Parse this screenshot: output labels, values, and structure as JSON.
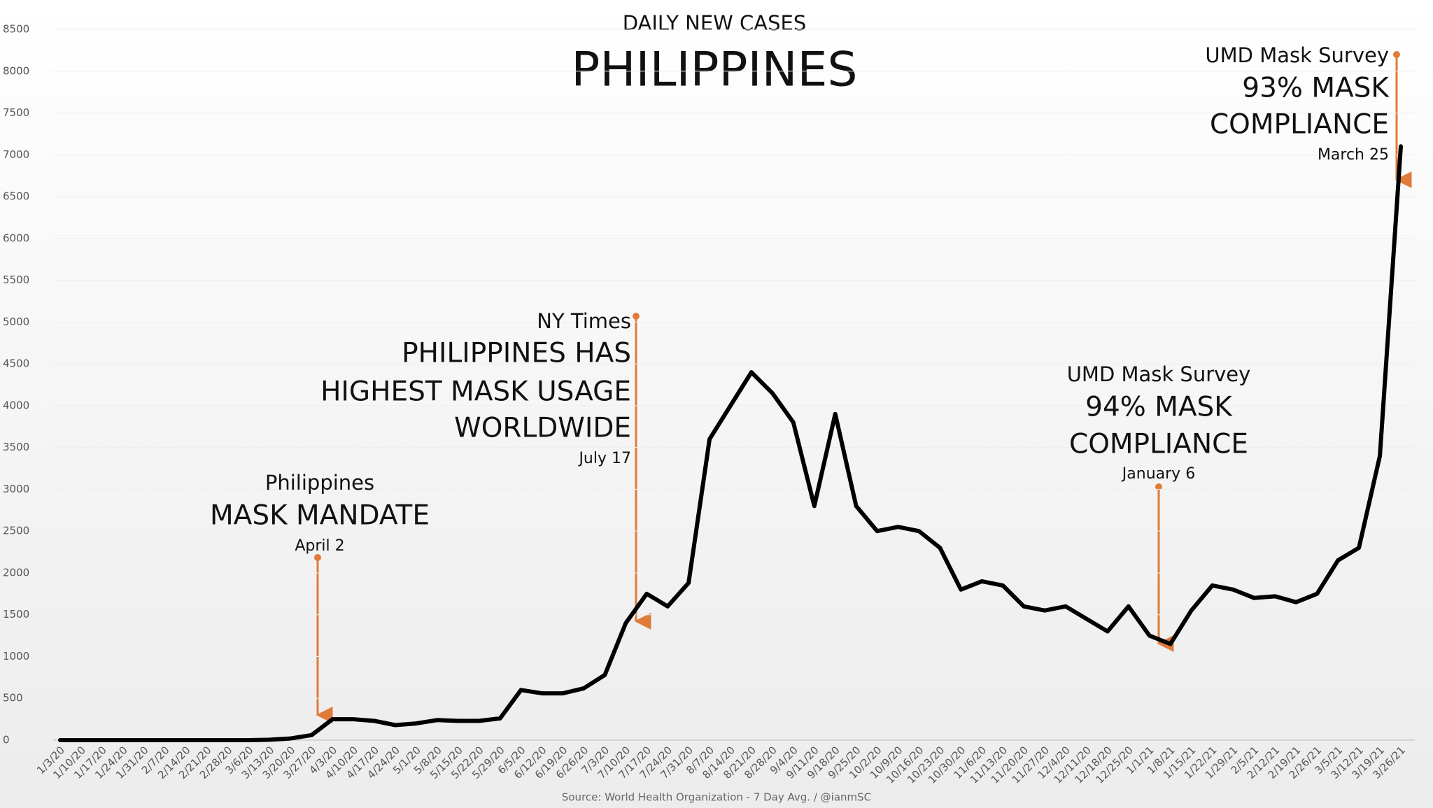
{
  "chart_data": {
    "type": "line",
    "subtitle": "DAILY NEW CASES",
    "title": "PHILIPPINES",
    "source": "Source: World Health Organization - 7 Day Avg. / @ianmSC",
    "color": "#000000",
    "categories": [
      "1/3/20",
      "1/10/20",
      "1/17/20",
      "1/24/20",
      "1/31/20",
      "2/7/20",
      "2/14/20",
      "2/21/20",
      "2/28/20",
      "3/6/20",
      "3/13/20",
      "3/20/20",
      "3/27/20",
      "4/3/20",
      "4/10/20",
      "4/17/20",
      "4/24/20",
      "5/1/20",
      "5/8/20",
      "5/15/20",
      "5/22/20",
      "5/29/20",
      "6/5/20",
      "6/12/20",
      "6/19/20",
      "6/26/20",
      "7/3/20",
      "7/10/20",
      "7/17/20",
      "7/24/20",
      "7/31/20",
      "8/7/20",
      "8/14/20",
      "8/21/20",
      "8/28/20",
      "9/4/20",
      "9/11/20",
      "9/18/20",
      "9/25/20",
      "10/2/20",
      "10/9/20",
      "10/16/20",
      "10/23/20",
      "10/30/20",
      "11/6/20",
      "11/13/20",
      "11/20/20",
      "11/27/20",
      "12/4/20",
      "12/11/20",
      "12/18/20",
      "12/25/20",
      "1/1/21",
      "1/8/21",
      "1/15/21",
      "1/22/21",
      "1/29/21",
      "2/5/21",
      "2/12/21",
      "2/19/21",
      "2/26/21",
      "3/5/21",
      "3/12/21",
      "3/19/21",
      "3/26/21"
    ],
    "values": [
      0,
      0,
      0,
      0,
      0,
      0,
      0,
      0,
      0,
      0,
      5,
      20,
      60,
      250,
      250,
      230,
      180,
      200,
      240,
      230,
      230,
      260,
      600,
      560,
      560,
      620,
      780,
      1400,
      1750,
      1600,
      1880,
      3600,
      4000,
      4400,
      4150,
      3800,
      2800,
      3900,
      2800,
      2500,
      2550,
      2500,
      2300,
      1800,
      1900,
      1850,
      1600,
      1550,
      1600,
      1450,
      1300,
      1600,
      1250,
      1150,
      1550,
      1850,
      1800,
      1700,
      1720,
      1650,
      1750,
      2150,
      2300,
      3400,
      7100
    ],
    "ylim": [
      0,
      8500
    ],
    "yticks": [
      0,
      500,
      1000,
      1500,
      2000,
      2500,
      3000,
      3500,
      4000,
      4500,
      5000,
      5500,
      6000,
      6500,
      7000,
      7500,
      8000,
      8500
    ],
    "annotations": [
      {
        "lines": [
          "Philippines",
          "MASK MANDATE",
          "April 2"
        ]
      },
      {
        "lines": [
          "NY Times",
          "PHILIPPINES HAS",
          "HIGHEST MASK USAGE",
          "WORLDWIDE",
          "July 17"
        ]
      },
      {
        "lines": [
          "UMD Mask Survey",
          "94% MASK",
          "COMPLIANCE",
          "January 6"
        ]
      },
      {
        "lines": [
          "UMD Mask Survey",
          "93% MASK",
          "COMPLIANCE",
          "March 25"
        ]
      }
    ]
  }
}
